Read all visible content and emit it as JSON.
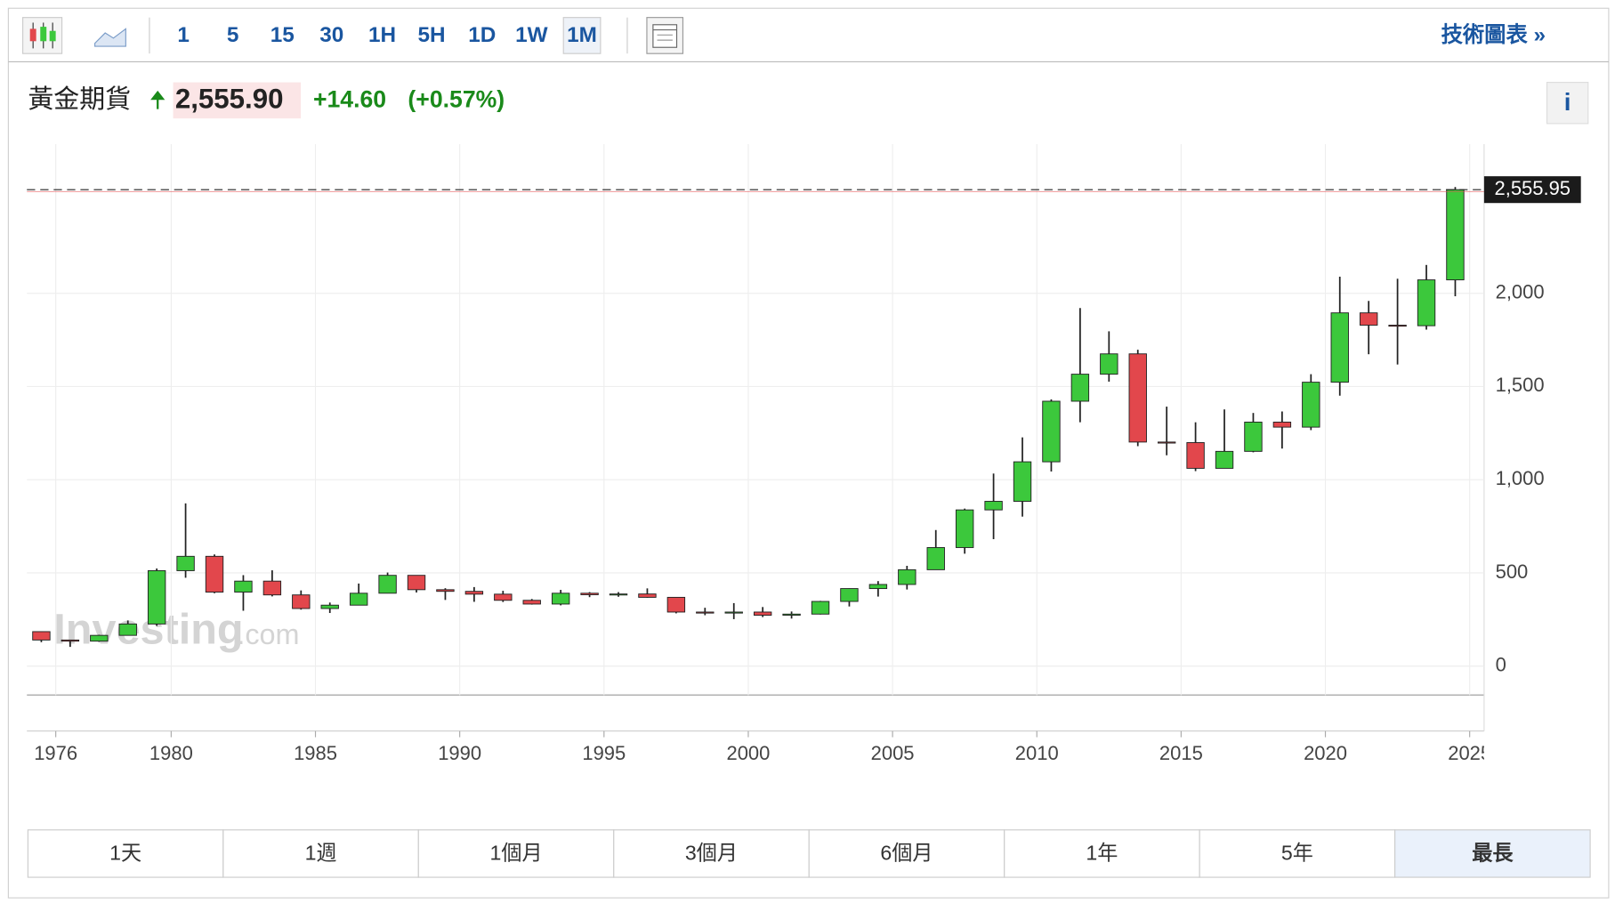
{
  "toolbar": {
    "intervals": [
      "1",
      "5",
      "15",
      "30",
      "1H",
      "5H",
      "1D",
      "1W",
      "1M"
    ],
    "link": "技術圖表 »"
  },
  "header": {
    "name": "黃金期貨",
    "price": "2,555.90",
    "change": "+14.60",
    "change_pct": "(+0.57%)",
    "info": "i"
  },
  "watermark": {
    "brand": "Investing",
    "suffix": ".com"
  },
  "ranges": [
    "1天",
    "1週",
    "1個月",
    "3個月",
    "6個月",
    "1年",
    "5年",
    "最長"
  ],
  "chart_data": {
    "type": "candlestick",
    "up_color": "#3cc83c",
    "down_color": "#e2474c",
    "grid": true,
    "x": [
      1975,
      1976,
      1977,
      1978,
      1979,
      1980,
      1981,
      1982,
      1983,
      1984,
      1985,
      1986,
      1987,
      1988,
      1989,
      1990,
      1991,
      1992,
      1993,
      1994,
      1995,
      1996,
      1997,
      1998,
      1999,
      2000,
      2001,
      2002,
      2003,
      2004,
      2005,
      2006,
      2007,
      2008,
      2009,
      2010,
      2011,
      2012,
      2013,
      2014,
      2015,
      2016,
      2017,
      2018,
      2019,
      2020,
      2021,
      2022,
      2023,
      2024
    ],
    "open": [
      185,
      140,
      134,
      165,
      226,
      512,
      589,
      397,
      456,
      382,
      309,
      327,
      391,
      487,
      410,
      401,
      386,
      353,
      333,
      391,
      383,
      387,
      369,
      290,
      288,
      290,
      273,
      279,
      347,
      416,
      438,
      517,
      636,
      838,
      884,
      1096,
      1421,
      1566,
      1675,
      1202,
      1199,
      1061,
      1152,
      1309,
      1282,
      1523,
      1895,
      1829,
      1826,
      2072
    ],
    "high": [
      186,
      142,
      168,
      245,
      524,
      873,
      599,
      488,
      514,
      406,
      341,
      443,
      502,
      486,
      418,
      424,
      404,
      360,
      409,
      397,
      397,
      417,
      367,
      313,
      338,
      317,
      293,
      350,
      417,
      456,
      538,
      730,
      845,
      1033,
      1227,
      1431,
      1921,
      1796,
      1697,
      1392,
      1308,
      1377,
      1358,
      1366,
      1566,
      2089,
      1959,
      2078,
      2152,
      2570
    ],
    "low": [
      128,
      103,
      130,
      165,
      216,
      474,
      391,
      297,
      374,
      303,
      285,
      327,
      390,
      395,
      355,
      345,
      344,
      330,
      326,
      370,
      372,
      367,
      283,
      273,
      252,
      263,
      255,
      277,
      320,
      373,
      411,
      520,
      603,
      681,
      802,
      1044,
      1308,
      1526,
      1180,
      1131,
      1046,
      1061,
      1147,
      1167,
      1266,
      1451,
      1673,
      1618,
      1805,
      1984
    ],
    "close": [
      140,
      134,
      165,
      226,
      512,
      589,
      397,
      456,
      382,
      309,
      327,
      391,
      487,
      410,
      401,
      386,
      353,
      333,
      391,
      383,
      387,
      369,
      290,
      288,
      290,
      273,
      279,
      347,
      416,
      438,
      517,
      636,
      838,
      884,
      1096,
      1421,
      1566,
      1675,
      1202,
      1199,
      1061,
      1152,
      1309,
      1282,
      1523,
      1895,
      1829,
      1826,
      2072,
      2556
    ],
    "xlim": [
      1975,
      2025.5
    ],
    "xticks": [
      1976,
      1980,
      1985,
      1990,
      1995,
      2000,
      2005,
      2010,
      2015,
      2020,
      2025
    ],
    "ylim": [
      -155,
      2800
    ],
    "yticks": [
      0,
      500,
      {
        "value": 1000,
        "label": "1,000"
      },
      {
        "value": 1500,
        "label": "1,500"
      },
      {
        "value": 2000,
        "label": "2,000"
      }
    ],
    "last_price": {
      "value": 2555.95,
      "label": "2,555.95"
    }
  }
}
